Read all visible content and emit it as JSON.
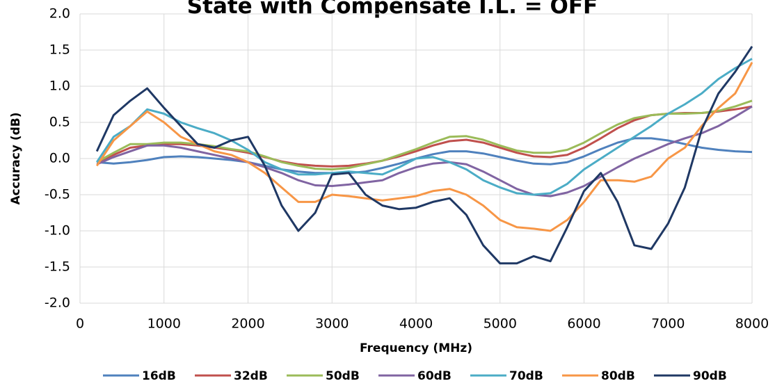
{
  "chart_data": {
    "type": "line",
    "title": "State with Compensate I.L. = OFF",
    "x_label": "Frequency (MHz)",
    "y_label": "Accuracy (dB)",
    "x": [
      200,
      400,
      600,
      800,
      1000,
      1200,
      1400,
      1600,
      1800,
      2000,
      2200,
      2400,
      2600,
      2800,
      3000,
      3200,
      3400,
      3600,
      3800,
      4000,
      4200,
      4400,
      4600,
      4800,
      5000,
      5200,
      5400,
      5600,
      5800,
      6000,
      6200,
      6400,
      6600,
      6800,
      7000,
      7200,
      7400,
      7600,
      7800,
      8000
    ],
    "series": [
      {
        "name": "16dB",
        "color": "#4f81bd",
        "values": [
          -0.05,
          -0.07,
          -0.05,
          -0.02,
          0.02,
          0.03,
          0.02,
          0.0,
          -0.02,
          -0.05,
          -0.1,
          -0.15,
          -0.18,
          -0.2,
          -0.2,
          -0.2,
          -0.18,
          -0.13,
          -0.07,
          0.0,
          0.06,
          0.1,
          0.1,
          0.07,
          0.02,
          -0.03,
          -0.07,
          -0.08,
          -0.05,
          0.03,
          0.13,
          0.22,
          0.28,
          0.28,
          0.25,
          0.2,
          0.15,
          0.12,
          0.1,
          0.09
        ]
      },
      {
        "name": "32dB",
        "color": "#c0504d",
        "values": [
          -0.05,
          0.05,
          0.15,
          0.18,
          0.2,
          0.2,
          0.18,
          0.15,
          0.12,
          0.08,
          0.02,
          -0.04,
          -0.08,
          -0.1,
          -0.11,
          -0.1,
          -0.07,
          -0.03,
          0.03,
          0.1,
          0.18,
          0.24,
          0.26,
          0.22,
          0.15,
          0.08,
          0.03,
          0.02,
          0.05,
          0.15,
          0.28,
          0.42,
          0.53,
          0.6,
          0.62,
          0.63,
          0.63,
          0.65,
          0.68,
          0.72
        ]
      },
      {
        "name": "50dB",
        "color": "#9bbb59",
        "values": [
          -0.05,
          0.08,
          0.2,
          0.2,
          0.22,
          0.22,
          0.2,
          0.17,
          0.13,
          0.1,
          0.03,
          -0.05,
          -0.1,
          -0.14,
          -0.15,
          -0.13,
          -0.08,
          -0.03,
          0.05,
          0.13,
          0.22,
          0.3,
          0.31,
          0.26,
          0.18,
          0.11,
          0.08,
          0.08,
          0.12,
          0.22,
          0.35,
          0.47,
          0.56,
          0.6,
          0.62,
          0.62,
          0.63,
          0.66,
          0.72,
          0.8
        ]
      },
      {
        "name": "60dB",
        "color": "#8064a2",
        "values": [
          -0.08,
          0.02,
          0.1,
          0.18,
          0.18,
          0.15,
          0.1,
          0.05,
          0.0,
          -0.05,
          -0.12,
          -0.2,
          -0.3,
          -0.37,
          -0.38,
          -0.36,
          -0.33,
          -0.3,
          -0.2,
          -0.12,
          -0.07,
          -0.05,
          -0.08,
          -0.18,
          -0.3,
          -0.42,
          -0.5,
          -0.52,
          -0.47,
          -0.38,
          -0.25,
          -0.12,
          0.0,
          0.1,
          0.2,
          0.28,
          0.35,
          0.45,
          0.58,
          0.72
        ]
      },
      {
        "name": "70dB",
        "color": "#4bacc6",
        "values": [
          -0.05,
          0.3,
          0.45,
          0.68,
          0.62,
          0.5,
          0.42,
          0.35,
          0.25,
          0.12,
          -0.05,
          -0.15,
          -0.22,
          -0.22,
          -0.2,
          -0.18,
          -0.2,
          -0.22,
          -0.12,
          0.0,
          0.02,
          -0.05,
          -0.15,
          -0.3,
          -0.4,
          -0.48,
          -0.5,
          -0.48,
          -0.35,
          -0.15,
          0.0,
          0.15,
          0.3,
          0.45,
          0.62,
          0.75,
          0.9,
          1.1,
          1.25,
          1.38
        ]
      },
      {
        "name": "80dB",
        "color": "#f79646",
        "values": [
          -0.1,
          0.25,
          0.45,
          0.65,
          0.5,
          0.3,
          0.2,
          0.1,
          0.05,
          -0.05,
          -0.2,
          -0.4,
          -0.6,
          -0.6,
          -0.5,
          -0.52,
          -0.55,
          -0.58,
          -0.55,
          -0.52,
          -0.45,
          -0.42,
          -0.5,
          -0.65,
          -0.85,
          -0.95,
          -0.97,
          -1.0,
          -0.85,
          -0.6,
          -0.3,
          -0.3,
          -0.32,
          -0.25,
          0.0,
          0.15,
          0.45,
          0.7,
          0.9,
          1.33
        ]
      },
      {
        "name": "90dB",
        "color": "#1f3864",
        "values": [
          0.1,
          0.6,
          0.8,
          0.97,
          0.7,
          0.45,
          0.2,
          0.15,
          0.25,
          0.3,
          -0.1,
          -0.65,
          -1.0,
          -0.75,
          -0.22,
          -0.2,
          -0.5,
          -0.65,
          -0.7,
          -0.68,
          -0.6,
          -0.55,
          -0.78,
          -1.2,
          -1.45,
          -1.45,
          -1.35,
          -1.42,
          -0.95,
          -0.45,
          -0.2,
          -0.6,
          -1.2,
          -1.25,
          -0.9,
          -0.4,
          0.4,
          0.9,
          1.2,
          1.55
        ]
      }
    ],
    "xlim": [
      0,
      8000
    ],
    "xticks": [
      0,
      1000,
      2000,
      3000,
      4000,
      5000,
      6000,
      7000,
      8000
    ],
    "ylim": [
      -2,
      2
    ],
    "yticks": [
      {
        "value": -2,
        "label": "-2.0"
      },
      {
        "value": -1.5,
        "label": "-1.5"
      },
      {
        "value": -1,
        "label": "-1.0"
      },
      {
        "value": -0.5,
        "label": "-0.5"
      },
      {
        "value": 0,
        "label": "0.0"
      },
      {
        "value": 0.5,
        "label": "0.5"
      },
      {
        "value": 1,
        "label": "1.0"
      },
      {
        "value": 1.5,
        "label": "1.5"
      },
      {
        "value": 2,
        "label": "2.0"
      }
    ],
    "grid": true,
    "legend": "bottom"
  }
}
